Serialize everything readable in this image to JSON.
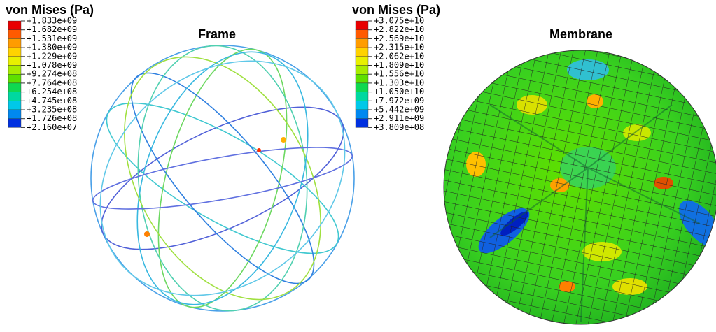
{
  "panels": [
    {
      "legend": {
        "title": "von Mises (Pa)",
        "labels": [
          "+1.833e+09",
          "+1.682e+09",
          "+1.531e+09",
          "+1.380e+09",
          "+1.229e+09",
          "+1.078e+09",
          "+9.274e+08",
          "+7.764e+08",
          "+6.254e+08",
          "+4.745e+08",
          "+3.235e+08",
          "+1.726e+08",
          "+2.160e+07"
        ]
      },
      "title": "Frame"
    },
    {
      "legend": {
        "title": "von Mises (Pa)",
        "labels": [
          "+3.075e+10",
          "+2.822e+10",
          "+2.569e+10",
          "+2.315e+10",
          "+2.062e+10",
          "+1.809e+10",
          "+1.556e+10",
          "+1.303e+10",
          "+1.050e+10",
          "+7.972e+09",
          "+5.442e+09",
          "+2.911e+09",
          "+3.809e+08"
        ]
      },
      "title": "Membrane"
    }
  ]
}
